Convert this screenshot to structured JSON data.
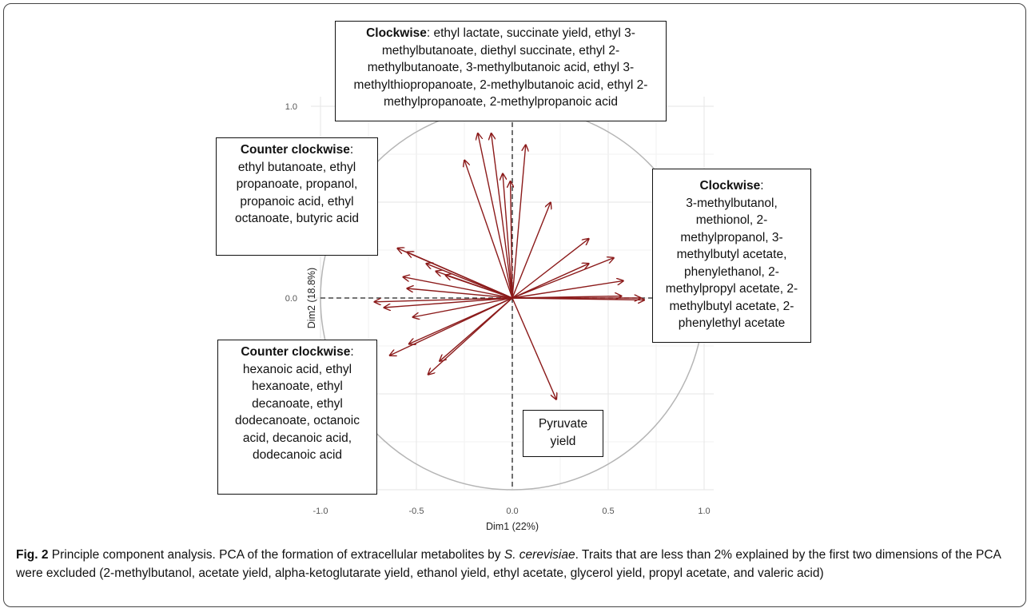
{
  "chart_data": {
    "type": "scatter",
    "subtype": "pca-variable-correlation-circle",
    "xlabel": "Dim1 (22%)",
    "ylabel": "Dim2 (18.8%)",
    "xlim": [
      -1.0,
      1.0
    ],
    "ylim": [
      -1.0,
      1.0
    ],
    "x_ticks": [
      "-1.0",
      "-0.5",
      "0.0",
      "0.5",
      "1.0"
    ],
    "y_ticks": [
      "1.0",
      "0.0"
    ],
    "grid": true,
    "unit_circle": true,
    "arrow_color": "#8b1a1a",
    "vectors": [
      {
        "x": -0.18,
        "y": 0.86
      },
      {
        "x": -0.11,
        "y": 0.86
      },
      {
        "x": 0.07,
        "y": 0.8
      },
      {
        "x": -0.25,
        "y": 0.72
      },
      {
        "x": -0.05,
        "y": 0.65
      },
      {
        "x": -0.01,
        "y": 0.61
      },
      {
        "x": 0.2,
        "y": 0.5
      },
      {
        "x": 0.4,
        "y": 0.31
      },
      {
        "x": 0.53,
        "y": 0.21
      },
      {
        "x": 0.4,
        "y": 0.18
      },
      {
        "x": 0.58,
        "y": 0.09
      },
      {
        "x": 0.57,
        "y": 0.01
      },
      {
        "x": 0.67,
        "y": 0.0
      },
      {
        "x": 0.69,
        "y": -0.01
      },
      {
        "x": -0.6,
        "y": 0.26
      },
      {
        "x": -0.55,
        "y": 0.24
      },
      {
        "x": -0.45,
        "y": 0.18
      },
      {
        "x": -0.4,
        "y": 0.14
      },
      {
        "x": -0.35,
        "y": 0.12
      },
      {
        "x": -0.57,
        "y": 0.11
      },
      {
        "x": -0.55,
        "y": 0.05
      },
      {
        "x": -0.72,
        "y": -0.02
      },
      {
        "x": -0.67,
        "y": -0.05
      },
      {
        "x": -0.52,
        "y": -0.1
      },
      {
        "x": -0.54,
        "y": -0.24
      },
      {
        "x": -0.64,
        "y": -0.3
      },
      {
        "x": -0.44,
        "y": -0.4
      },
      {
        "x": -0.38,
        "y": -0.33
      },
      {
        "x": 0.23,
        "y": -0.53
      }
    ]
  },
  "boxes": {
    "top": {
      "title": "Clockwise",
      "text": ": ethyl lactate, succinate yield, ethyl 3-methylbutanoate, diethyl succinate, ethyl 2-methylbutanoate,  3-methylbutanoic acid, ethyl 3-methylthiopropanoate, 2-methylbutanoic acid, ethyl 2-methylpropanoate, 2-methylpropanoic acid"
    },
    "upper_left": {
      "title": "Counter clockwise",
      "text": "ethyl butanoate, ethyl propanoate, propanol, propanoic acid, ethyl octanoate, butyric acid"
    },
    "right": {
      "title": "Clockwise",
      "text": "3-methylbutanol, methionol, 2-methylpropanol, 3-methylbutyl acetate, phenylethanol, 2-methylpropyl acetate, 2-methylbutyl acetate, 2-phenylethyl acetate"
    },
    "lower_left": {
      "title": "Counter clockwise",
      "text": "hexanoic acid, ethyl hexanoate, ethyl decanoate, ethyl dodecanoate, octanoic acid, decanoic acid, dodecanoic acid"
    },
    "pyruvate": {
      "text": "Pyruvate yield"
    }
  },
  "caption": {
    "label": "Fig. 2",
    "title": "Principle component analysis.",
    "text_before_species": "PCA of the formation of extracellular metabolites by",
    "species": "S. cerevisiae",
    "text_after_species": ". Traits that are less than 2% explained by the first two dimensions of the PCA were excluded (2-methylbutanol, acetate yield, alpha-ketoglutarate yield, ethanol yield, ethyl acetate, glycerol yield, propyl acetate, and valeric acid)"
  }
}
